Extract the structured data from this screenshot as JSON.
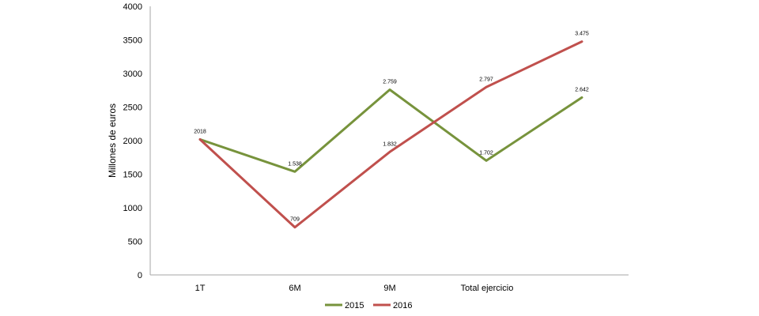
{
  "chart_data": {
    "type": "line",
    "categories": [
      "1T",
      "6M",
      "9M",
      "Total ejercicio"
    ],
    "x": [
      1,
      2,
      3,
      4,
      5
    ],
    "series": [
      {
        "name": "2015",
        "color": "#77933C",
        "values": [
          2018,
          1538,
          2759,
          1702,
          2642
        ],
        "labels": [
          "2018",
          "1.538",
          "2.759",
          "1.702",
          "2.642"
        ]
      },
      {
        "name": "2016",
        "color": "#C0504D",
        "values": [
          2018,
          709,
          1832,
          2797,
          3475
        ],
        "labels": [
          "",
          "709",
          "1.832",
          "2.797",
          "3.475"
        ]
      }
    ],
    "ylabel": "Millones de euros",
    "ylim": [
      0,
      4000
    ],
    "yticks": [
      "0",
      "500",
      "1000",
      "1500",
      "2000",
      "2500",
      "3000",
      "3500",
      "4000"
    ],
    "legend": "bottom",
    "grid": false
  }
}
